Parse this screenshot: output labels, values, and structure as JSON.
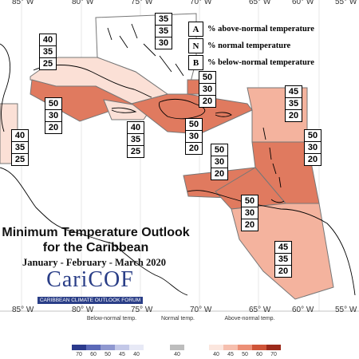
{
  "map": {
    "title_line1": "Minimum Temperature Outlook",
    "title_line2": "for the Caribbean",
    "period": "January - February - March 2020",
    "logo_text": "CariCOF",
    "logo_subtext": "CARIBBEAN CLIMATE OUTLOOK FORUM",
    "lon_labels_top": [
      "85° W",
      "80° W",
      "75° W",
      "70° W",
      "65° W",
      "60° W",
      "55° W"
    ],
    "lon_labels_bottom": [
      "85° W",
      "80° W",
      "75° W",
      "70° W",
      "65° W",
      "60° W",
      "55° W"
    ]
  },
  "key": {
    "rows": [
      {
        "letter": "A",
        "text": "% above-normal temperature"
      },
      {
        "letter": "N",
        "text": "% normal temperature"
      },
      {
        "letter": "B",
        "text": "% below-normal temperature"
      }
    ]
  },
  "regions": [
    {
      "name": "bahamas",
      "values": [
        "35",
        "35",
        "30"
      ],
      "fill": "#ffffff"
    },
    {
      "name": "cuba",
      "values": [
        "40",
        "35",
        "25"
      ],
      "fill": "#fbe0d6"
    },
    {
      "name": "belize",
      "values": [
        "40",
        "35",
        "25"
      ],
      "fill": "#fbe0d6"
    },
    {
      "name": "western-caribbean",
      "values": [
        "50",
        "30",
        "20"
      ],
      "fill": "#e07a5f"
    },
    {
      "name": "jamaica",
      "values": [
        "40",
        "35",
        "25"
      ],
      "fill": "#fbe0d6"
    },
    {
      "name": "hispaniola",
      "values": [
        "50",
        "30",
        "20"
      ],
      "fill": "#e07a5f"
    },
    {
      "name": "turks-caicos",
      "values": [
        "50",
        "30",
        "20"
      ],
      "fill": "#e07a5f"
    },
    {
      "name": "northeast-caribbean",
      "values": [
        "45",
        "35",
        "20"
      ],
      "fill": "#f4b39e"
    },
    {
      "name": "central-caribbean",
      "values": [
        "50",
        "30",
        "20"
      ],
      "fill": "#e07a5f"
    },
    {
      "name": "lesser-antilles",
      "values": [
        "50",
        "30",
        "20"
      ],
      "fill": "#e07a5f"
    },
    {
      "name": "southern-caribbean",
      "values": [
        "50",
        "30",
        "20"
      ],
      "fill": "#e07a5f"
    },
    {
      "name": "guianas",
      "values": [
        "45",
        "35",
        "20"
      ],
      "fill": "#f4b39e"
    }
  ],
  "colorbar": {
    "below_title": "Below-normal temp.",
    "normal_title": "Normal temp.",
    "above_title": "Above-normal temp.",
    "below": [
      {
        "label": "70",
        "color": "#2b3a8c"
      },
      {
        "label": "60",
        "color": "#5b69b8"
      },
      {
        "label": "50",
        "color": "#8f98d0"
      },
      {
        "label": "45",
        "color": "#c3c8e8"
      },
      {
        "label": "40",
        "color": "#e7e9f6"
      }
    ],
    "normal": [
      {
        "label": "40",
        "color": "#bdbdbd"
      }
    ],
    "above": [
      {
        "label": "40",
        "color": "#fbe6de"
      },
      {
        "label": "45",
        "color": "#f6bfae"
      },
      {
        "label": "50",
        "color": "#ec8f76"
      },
      {
        "label": "60",
        "color": "#cf5438"
      },
      {
        "label": "70",
        "color": "#9c2a1b"
      }
    ]
  }
}
